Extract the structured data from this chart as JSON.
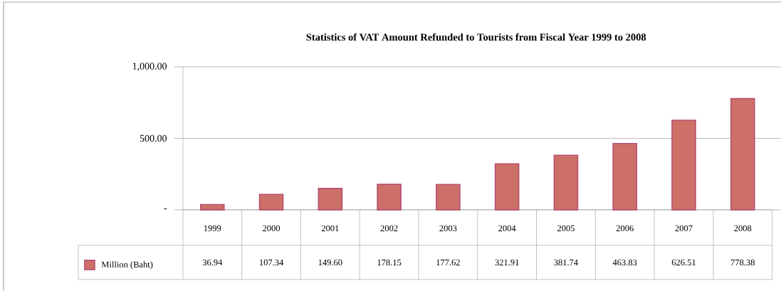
{
  "chart_data": {
    "type": "bar",
    "title": "Statistics of VAT Amount Refunded to Tourists from Fiscal Year 1999 to 2008",
    "categories": [
      "1999",
      "2000",
      "2001",
      "2002",
      "2003",
      "2004",
      "2005",
      "2006",
      "2007",
      "2008"
    ],
    "series": [
      {
        "name": "Million (Baht)",
        "color": "#cd7068",
        "values": [
          36.94,
          107.34,
          149.6,
          178.15,
          177.62,
          321.91,
          381.74,
          463.83,
          626.51,
          778.38
        ],
        "value_labels": [
          "36.94",
          "107.34",
          "149.60",
          "178.15",
          "177.62",
          "321.91",
          "381.74",
          "463.83",
          "626.51",
          "778.38"
        ]
      }
    ],
    "ylim": [
      0,
      1000
    ],
    "yticks": [
      {
        "value": 0,
        "label": "-"
      },
      {
        "value": 500,
        "label": "500.00"
      },
      {
        "value": 1000,
        "label": "1,000.00"
      }
    ],
    "grid": "y",
    "legend": "bottom left"
  }
}
